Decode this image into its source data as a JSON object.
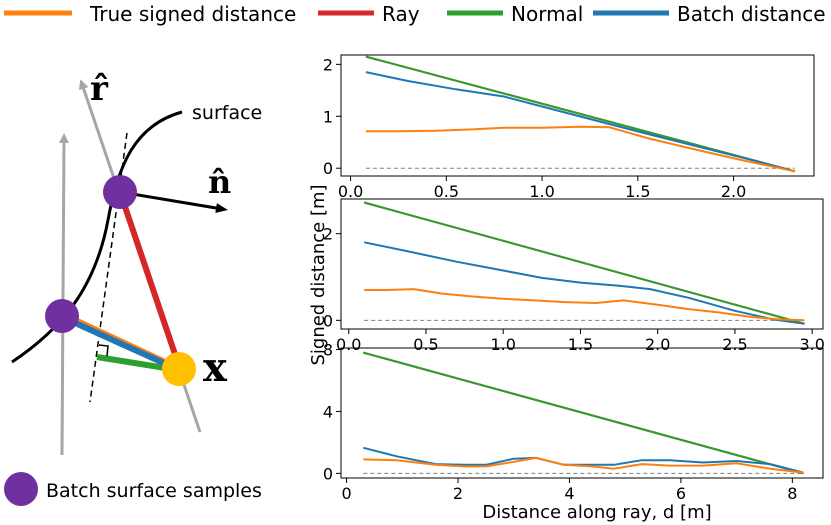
{
  "legend": {
    "placement": "top",
    "entries": [
      {
        "label": "True signed distance",
        "color": "#ff7f0e"
      },
      {
        "label": "Ray",
        "color": "#d62728"
      },
      {
        "label": "Normal",
        "color": "#2ca02c"
      },
      {
        "label": "Batch distance",
        "color": "#1f77b4"
      }
    ]
  },
  "diagram": {
    "surface_label": "surface",
    "r_hat_label": "r̂",
    "n_hat_label": "n̂",
    "x_label": "x",
    "samples_label": "Batch surface samples",
    "colors": {
      "sample": "#7030a0",
      "point": "#ffc000",
      "axis": "#a6a6a6"
    }
  },
  "shared": {
    "xlabel": "Distance along ray, d [m]",
    "ylabel": "Signed distance [m]"
  },
  "chart_data": [
    {
      "type": "line",
      "xlim": [
        -0.05,
        2.42
      ],
      "ylim": [
        -0.15,
        2.18
      ],
      "xticks": [
        0.0,
        0.5,
        1.0,
        1.5,
        2.0
      ],
      "xtick_labels": [
        "0.0",
        "0.5",
        "1.0",
        "1.5",
        "2.0"
      ],
      "yticks": [
        0,
        1,
        2
      ],
      "ytick_labels": [
        "0",
        "1",
        "2"
      ],
      "zero_line": true,
      "series": [
        {
          "name": "Ray",
          "color": "#d62728",
          "x": [
            0.08,
            2.32
          ],
          "y": [
            2.15,
            -0.06
          ]
        },
        {
          "name": "Normal",
          "color": "#2ca02c",
          "x": [
            0.08,
            2.32
          ],
          "y": [
            2.15,
            -0.06
          ]
        },
        {
          "name": "Batch distance",
          "color": "#1f77b4",
          "x": [
            0.08,
            0.3,
            0.55,
            0.8,
            1.05,
            1.3,
            1.55,
            1.8,
            2.05,
            2.32
          ],
          "y": [
            1.85,
            1.68,
            1.52,
            1.38,
            1.14,
            0.9,
            0.66,
            0.43,
            0.2,
            -0.06
          ]
        },
        {
          "name": "True signed distance",
          "color": "#ff7f0e",
          "x": [
            0.08,
            0.25,
            0.45,
            0.65,
            0.8,
            1.0,
            1.2,
            1.35,
            1.55,
            1.8,
            2.05,
            2.32
          ],
          "y": [
            0.71,
            0.71,
            0.72,
            0.75,
            0.78,
            0.78,
            0.8,
            0.79,
            0.58,
            0.36,
            0.15,
            -0.06
          ]
        }
      ]
    },
    {
      "type": "line",
      "xlim": [
        -0.05,
        3.07
      ],
      "ylim": [
        -0.2,
        2.8
      ],
      "xticks": [
        0.0,
        0.5,
        1.0,
        1.5,
        2.0,
        2.5,
        3.0
      ],
      "xtick_labels": [
        "0.0",
        "0.5",
        "1.0",
        "1.5",
        "2.0",
        "2.5",
        "3.0"
      ],
      "yticks": [
        0,
        2
      ],
      "ytick_labels": [
        "0",
        "2"
      ],
      "zero_line": true,
      "series": [
        {
          "name": "Ray",
          "color": "#d62728",
          "x": [
            0.1,
            2.95
          ],
          "y": [
            2.72,
            -0.08
          ]
        },
        {
          "name": "Normal",
          "color": "#2ca02c",
          "x": [
            0.1,
            2.95
          ],
          "y": [
            2.72,
            -0.08
          ]
        },
        {
          "name": "Batch distance",
          "color": "#1f77b4",
          "x": [
            0.1,
            0.4,
            0.7,
            1.0,
            1.25,
            1.5,
            1.75,
            1.95,
            2.2,
            2.5,
            2.75,
            2.95
          ],
          "y": [
            1.8,
            1.58,
            1.35,
            1.15,
            0.98,
            0.87,
            0.8,
            0.72,
            0.52,
            0.22,
            0.02,
            -0.08
          ]
        },
        {
          "name": "True signed distance",
          "color": "#ff7f0e",
          "x": [
            0.1,
            0.25,
            0.42,
            0.6,
            0.8,
            1.0,
            1.2,
            1.4,
            1.6,
            1.78,
            2.0,
            2.2,
            2.4,
            2.6,
            2.8,
            2.95
          ],
          "y": [
            0.7,
            0.7,
            0.72,
            0.62,
            0.55,
            0.5,
            0.46,
            0.42,
            0.4,
            0.46,
            0.36,
            0.26,
            0.18,
            0.08,
            0.02,
            0.0
          ]
        }
      ]
    },
    {
      "type": "line",
      "xlim": [
        -0.1,
        8.55
      ],
      "ylim": [
        -0.3,
        8.1
      ],
      "xticks": [
        0,
        2,
        4,
        6,
        8
      ],
      "xtick_labels": [
        "0",
        "2",
        "4",
        "6",
        "8"
      ],
      "yticks": [
        0,
        4,
        8
      ],
      "ytick_labels": [
        "0",
        "4",
        "8"
      ],
      "zero_line": true,
      "series": [
        {
          "name": "Ray",
          "color": "#d62728",
          "x": [
            0.3,
            8.2
          ],
          "y": [
            7.8,
            0.0
          ]
        },
        {
          "name": "Normal",
          "color": "#2ca02c",
          "x": [
            0.3,
            8.2
          ],
          "y": [
            7.8,
            0.0
          ]
        },
        {
          "name": "Batch distance",
          "color": "#1f77b4",
          "x": [
            0.3,
            0.9,
            1.6,
            2.1,
            2.5,
            3.0,
            3.4,
            3.9,
            4.4,
            4.8,
            5.3,
            5.8,
            6.4,
            7.0,
            7.6,
            8.2
          ],
          "y": [
            1.65,
            1.1,
            0.6,
            0.55,
            0.55,
            0.95,
            1.0,
            0.55,
            0.55,
            0.55,
            0.85,
            0.85,
            0.7,
            0.8,
            0.6,
            0.05
          ]
        },
        {
          "name": "True signed distance",
          "color": "#ff7f0e",
          "x": [
            0.3,
            0.9,
            1.6,
            2.1,
            2.5,
            3.0,
            3.4,
            3.9,
            4.4,
            4.8,
            5.3,
            5.8,
            6.4,
            7.0,
            7.6,
            8.2
          ],
          "y": [
            0.9,
            0.85,
            0.55,
            0.45,
            0.45,
            0.75,
            1.0,
            0.55,
            0.45,
            0.3,
            0.6,
            0.5,
            0.5,
            0.65,
            0.3,
            0.05
          ]
        }
      ]
    }
  ]
}
